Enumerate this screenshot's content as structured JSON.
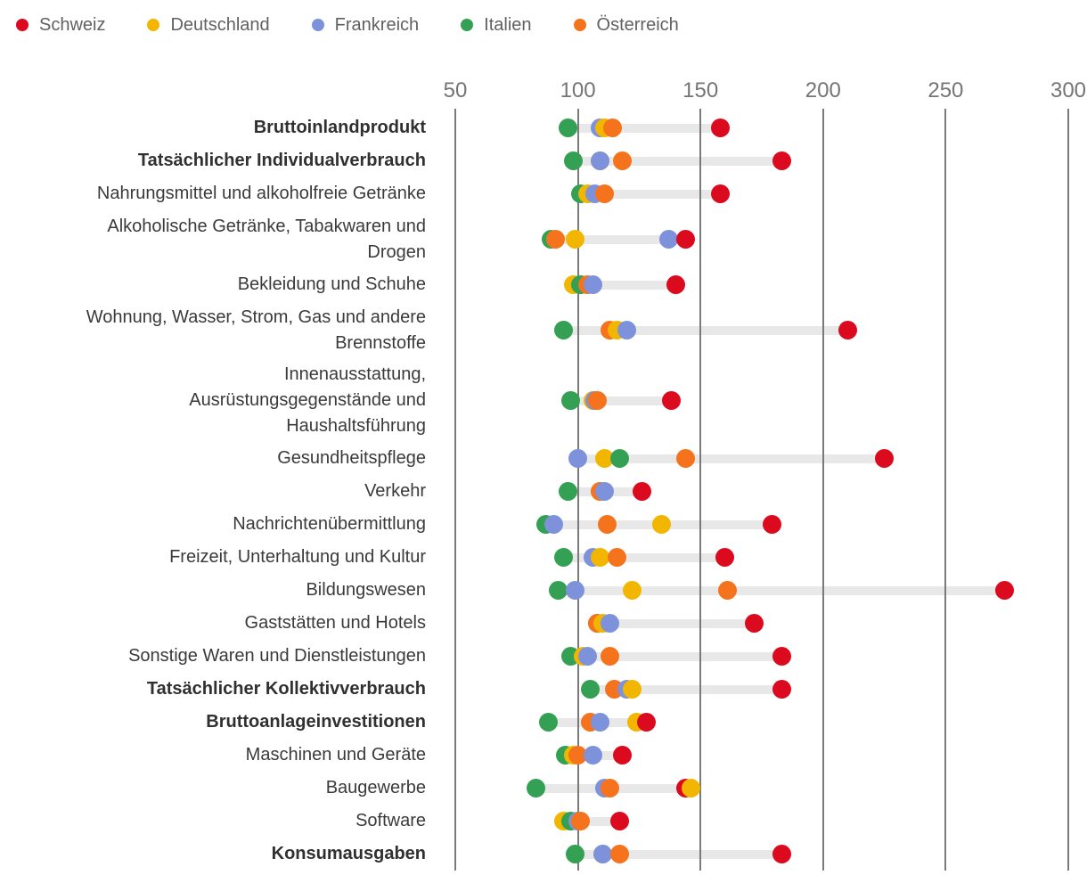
{
  "legend": [
    {
      "label": "Schweiz",
      "color": "#dc0a1e"
    },
    {
      "label": "Deutschland",
      "color": "#f2b600"
    },
    {
      "label": "Frankreich",
      "color": "#7d92da"
    },
    {
      "label": "Italien",
      "color": "#34a053"
    },
    {
      "label": "Österreich",
      "color": "#f4731c"
    }
  ],
  "chart_data": {
    "type": "scatter",
    "subtype": "dot-plot-dumbbell",
    "x_axis": {
      "min": 50,
      "max": 300,
      "ticks": [
        50,
        100,
        150,
        200,
        250,
        300
      ],
      "grid": true
    },
    "connector_bar_color": "#e8e8e8",
    "gridline_color": "#7a7a7a",
    "draw_order_bottom_to_top": [
      "Deutschland",
      "Frankreich",
      "Italien",
      "Österreich",
      "Schweiz"
    ],
    "rows": [
      {
        "label_lines": [
          "Bruttoinlandprodukt"
        ],
        "bold": true,
        "values": {
          "Schweiz": 158,
          "Deutschland": 111,
          "Frankreich": 109,
          "Italien": 96,
          "Österreich": 114
        }
      },
      {
        "label_lines": [
          "Tatsächlicher Individualverbrauch"
        ],
        "bold": true,
        "values": {
          "Schweiz": 183,
          "Deutschland": 109,
          "Frankreich": 109,
          "Italien": 98,
          "Österreich": 118
        }
      },
      {
        "label_lines": [
          "Nahrungsmittel und alkoholfreie Getränke"
        ],
        "bold": false,
        "values": {
          "Schweiz": 158,
          "Deutschland": 104,
          "Frankreich": 107,
          "Italien": 101,
          "Österreich": 111
        }
      },
      {
        "label_lines": [
          "Alkoholische Getränke, Tabakwaren und",
          "Drogen"
        ],
        "bold": false,
        "values": {
          "Schweiz": 144,
          "Deutschland": 99,
          "Frankreich": 137,
          "Italien": 89,
          "Österreich": 91
        }
      },
      {
        "label_lines": [
          "Bekleidung und Schuhe"
        ],
        "bold": false,
        "values": {
          "Schweiz": 140,
          "Deutschland": 98,
          "Frankreich": 106,
          "Italien": 101,
          "Österreich": 104
        }
      },
      {
        "label_lines": [
          "Wohnung, Wasser, Strom, Gas und andere",
          "Brennstoffe"
        ],
        "bold": false,
        "values": {
          "Schweiz": 210,
          "Deutschland": 116,
          "Frankreich": 120,
          "Italien": 94,
          "Österreich": 113
        }
      },
      {
        "label_lines": [
          "Innenausstattung,",
          "Ausrüstungsgegenstände und",
          "Haushaltsführung"
        ],
        "bold": false,
        "values": {
          "Schweiz": 138,
          "Deutschland": 106,
          "Frankreich": 107,
          "Italien": 97,
          "Österreich": 108
        }
      },
      {
        "label_lines": [
          "Gesundheitspflege"
        ],
        "bold": false,
        "values": {
          "Schweiz": 225,
          "Deutschland": 111,
          "Frankreich": 100,
          "Italien": 117,
          "Österreich": 144
        }
      },
      {
        "label_lines": [
          "Verkehr"
        ],
        "bold": false,
        "values": {
          "Schweiz": 126,
          "Deutschland": 109,
          "Frankreich": 111,
          "Italien": 96,
          "Österreich": 109
        }
      },
      {
        "label_lines": [
          "Nachrichtenübermittlung"
        ],
        "bold": false,
        "values": {
          "Schweiz": 179,
          "Deutschland": 134,
          "Frankreich": 90,
          "Italien": 87,
          "Österreich": 112
        }
      },
      {
        "label_lines": [
          "Freizeit, Unterhaltung und Kultur"
        ],
        "bold": false,
        "values": {
          "Schweiz": 160,
          "Deutschland": 109,
          "Frankreich": 106,
          "Italien": 94,
          "Österreich": 116
        }
      },
      {
        "label_lines": [
          "Bildungswesen"
        ],
        "bold": false,
        "values": {
          "Schweiz": 274,
          "Deutschland": 122,
          "Frankreich": 99,
          "Italien": 92,
          "Österreich": 161
        }
      },
      {
        "label_lines": [
          "Gaststätten und Hotels"
        ],
        "bold": false,
        "values": {
          "Schweiz": 172,
          "Deutschland": 110,
          "Frankreich": 113,
          "Italien": 108,
          "Österreich": 108
        }
      },
      {
        "label_lines": [
          "Sonstige Waren und Dienstleistungen"
        ],
        "bold": false,
        "values": {
          "Schweiz": 183,
          "Deutschland": 102,
          "Frankreich": 104,
          "Italien": 97,
          "Österreich": 113
        }
      },
      {
        "label_lines": [
          "Tatsächlicher Kollektivverbrauch"
        ],
        "bold": true,
        "values": {
          "Schweiz": 183,
          "Deutschland": 122,
          "Frankreich": 120,
          "Italien": 105,
          "Österreich": 115
        }
      },
      {
        "label_lines": [
          "Bruttoanlageinvestitionen"
        ],
        "bold": true,
        "values": {
          "Schweiz": 128,
          "Deutschland": 124,
          "Frankreich": 109,
          "Italien": 88,
          "Österreich": 105
        }
      },
      {
        "label_lines": [
          "Maschinen und Geräte"
        ],
        "bold": false,
        "values": {
          "Schweiz": 118,
          "Deutschland": 98,
          "Frankreich": 106,
          "Italien": 95,
          "Österreich": 100
        }
      },
      {
        "label_lines": [
          "Baugewerbe"
        ],
        "bold": false,
        "values": {
          "Schweiz": 144,
          "Deutschland": 146,
          "Frankreich": 111,
          "Italien": 83,
          "Österreich": 113
        }
      },
      {
        "label_lines": [
          "Software"
        ],
        "bold": false,
        "values": {
          "Schweiz": 117,
          "Deutschland": 94,
          "Frankreich": 100,
          "Italien": 97,
          "Österreich": 101
        }
      },
      {
        "label_lines": [
          "Konsumausgaben"
        ],
        "bold": true,
        "values": {
          "Schweiz": 183,
          "Deutschland": 110,
          "Frankreich": 110,
          "Italien": 99,
          "Österreich": 117
        }
      }
    ]
  }
}
